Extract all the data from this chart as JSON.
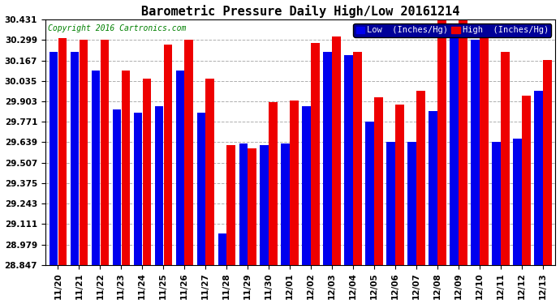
{
  "title": "Barometric Pressure Daily High/Low 20161214",
  "copyright": "Copyright 2016 Cartronics.com",
  "legend_low": "Low  (Inches/Hg)",
  "legend_high": "High  (Inches/Hg)",
  "categories": [
    "11/20",
    "11/21",
    "11/22",
    "11/23",
    "11/24",
    "11/25",
    "11/26",
    "11/27",
    "11/28",
    "11/29",
    "11/30",
    "12/01",
    "12/02",
    "12/03",
    "12/04",
    "12/05",
    "12/06",
    "12/07",
    "12/08",
    "12/09",
    "12/10",
    "12/11",
    "12/12",
    "12/13"
  ],
  "low_values": [
    30.22,
    30.22,
    30.1,
    29.85,
    29.83,
    29.87,
    30.1,
    29.83,
    29.05,
    29.63,
    29.62,
    29.63,
    29.87,
    30.22,
    30.2,
    29.77,
    29.64,
    29.64,
    29.84,
    30.32,
    30.3,
    29.64,
    29.66,
    29.97
  ],
  "high_values": [
    30.31,
    30.3,
    30.3,
    30.1,
    30.05,
    30.27,
    30.3,
    30.05,
    29.62,
    29.6,
    29.9,
    29.91,
    30.28,
    30.32,
    30.22,
    29.93,
    29.88,
    29.97,
    30.43,
    30.43,
    30.37,
    30.22,
    29.94,
    30.17
  ],
  "ymin": 28.847,
  "ymax": 30.431,
  "yticks": [
    28.847,
    28.979,
    29.111,
    29.243,
    29.375,
    29.507,
    29.639,
    29.771,
    29.903,
    30.035,
    30.167,
    30.299,
    30.431
  ],
  "bar_color_low": "#0000ee",
  "bar_color_high": "#ee0000",
  "bg_color": "#ffffff",
  "grid_color": "#999999",
  "title_fontsize": 11,
  "tick_fontsize": 7.5,
  "legend_fontsize": 7.5,
  "copyright_fontsize": 7,
  "legend_bg": "#000099",
  "legend_text_color": "#ffffff"
}
